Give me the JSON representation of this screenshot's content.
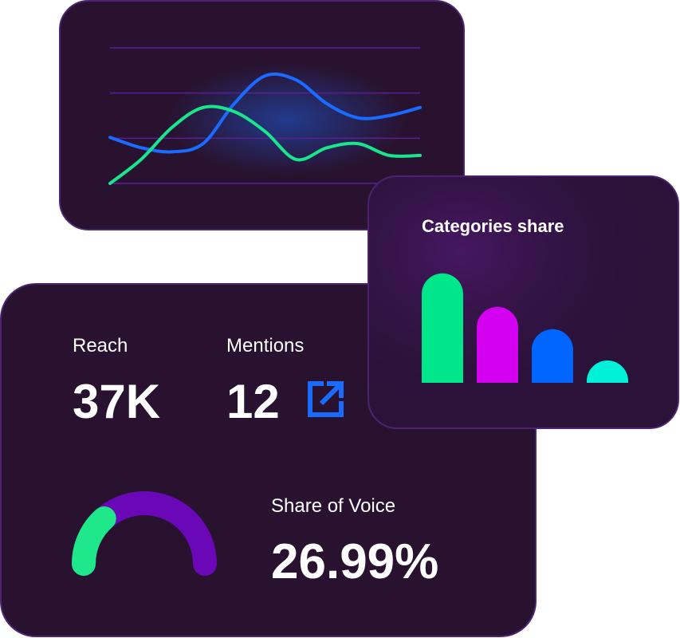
{
  "line_chart": {
    "type": "line",
    "ylim": [
      0,
      3
    ],
    "yticks": [
      0,
      1,
      2,
      3
    ],
    "grid": true,
    "series": [
      {
        "color": "#1a6bff",
        "values": [
          1.02,
          0.79,
          0.7,
          0.88,
          1.76,
          2.38,
          2.29,
          1.76,
          1.45,
          1.5,
          1.68
        ]
      },
      {
        "color": "#19e68c",
        "values": [
          0,
          0.53,
          1.24,
          1.68,
          1.59,
          1.15,
          0.53,
          0.79,
          0.88,
          0.62,
          0.62
        ]
      }
    ]
  },
  "bar_chart": {
    "type": "bar",
    "title": "Categories share",
    "ylim": [
      0,
      100
    ],
    "values": [
      98,
      68,
      48,
      20
    ],
    "colors": [
      "#00e68a",
      "#d400f0",
      "#0066ff",
      "#00f0d8"
    ]
  },
  "stats": {
    "reach": {
      "label": "Reach",
      "value": "37K"
    },
    "mentions": {
      "label": "Mentions",
      "value": "12"
    },
    "share_of_voice": {
      "label": "Share of Voice",
      "value": 26.99,
      "value_label": "26.99%",
      "color": "#1ee88a",
      "track_color": "#6a08b8"
    }
  }
}
